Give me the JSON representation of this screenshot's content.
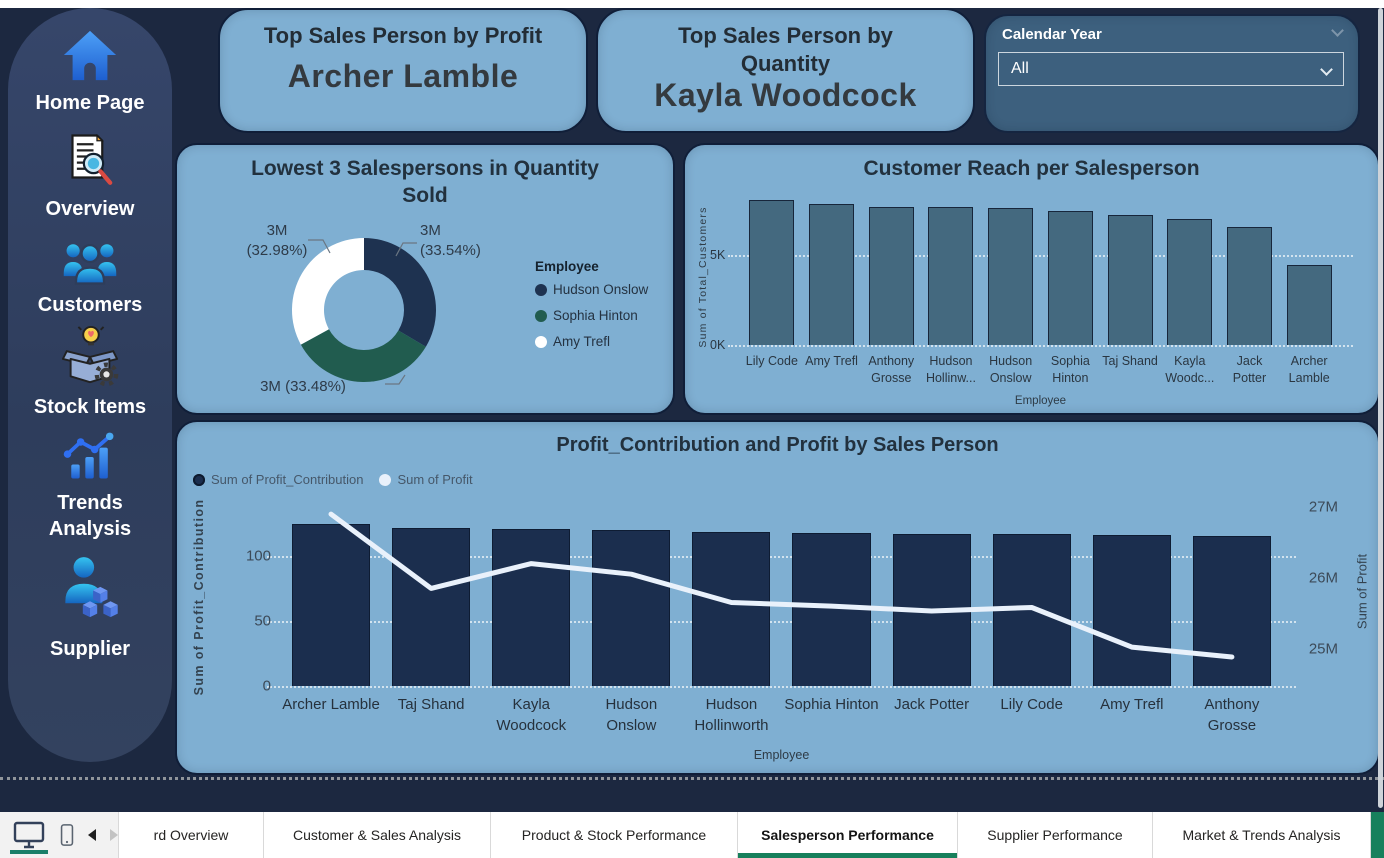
{
  "sidebar": {
    "items": [
      {
        "label": "Home Page"
      },
      {
        "label": "Overview"
      },
      {
        "label": "Customers"
      },
      {
        "label": "Stock Items"
      },
      {
        "label": "Trends Analysis"
      },
      {
        "label": "Supplier"
      }
    ]
  },
  "kpi_cards": [
    {
      "title": "Top Sales Person by Profit",
      "value": "Archer Lamble"
    },
    {
      "title": "Top Sales Person by Quantity",
      "value": "Kayla Woodcock"
    }
  ],
  "slicer": {
    "label": "Calendar Year",
    "value": "All"
  },
  "chart_data": [
    {
      "type": "pie",
      "subtype": "donut",
      "title": "Lowest 3 Salespersons in Quantity Sold",
      "legend_title": "Employee",
      "legend_position": "right",
      "slices": [
        {
          "label": "Hudson Onslow",
          "value_label": "3M",
          "pct": 33.54,
          "color": "#1e3250"
        },
        {
          "label": "Sophia Hinton",
          "value_label": "3M",
          "pct": 33.48,
          "color": "#215c4f"
        },
        {
          "label": "Amy Trefl",
          "value_label": "3M",
          "pct": 32.98,
          "color": "#ffffff"
        }
      ],
      "callouts": {
        "top_right": [
          "3M",
          "(33.54%)"
        ],
        "top_left": [
          "3M",
          "(32.98%)"
        ],
        "bottom": "3M (33.48%)"
      }
    },
    {
      "type": "bar",
      "title": "Customer Reach per Salesperson",
      "xlabel": "Employee",
      "ylabel": "Sum of Total_Customers",
      "categories": [
        "Lily Code",
        "Amy Trefl",
        "Anthony Grosse",
        "Hudson Hollinw...",
        "Hudson Onslow",
        "Sophia Hinton",
        "Taj Shand",
        "Kayla Woodc...",
        "Jack Potter",
        "Archer Lamble"
      ],
      "values": [
        8100,
        7850,
        7700,
        7680,
        7650,
        7450,
        7250,
        7000,
        6600,
        4450
      ],
      "yticks": [
        {
          "value": 0,
          "label": "0K"
        },
        {
          "value": 5000,
          "label": "5K"
        }
      ],
      "ylim": [
        0,
        8250
      ],
      "bar_color": "#44697f",
      "bar_border_color": "#17263b",
      "grid": true
    },
    {
      "type": "combo",
      "title": "Profit_Contribution and Profit by Sales Person",
      "xlabel": "Employee",
      "ylabel_left": "Sum of Profit_Contribution",
      "ylabel_right": "Sum of Profit",
      "legend": [
        "Sum of Profit_Contribution",
        "Sum of Profit"
      ],
      "legend_position": "top-left",
      "categories": [
        "Archer Lamble",
        "Taj Shand",
        "Kayla Woodcock",
        "Hudson Onslow",
        "Hudson Hollinworth",
        "Sophia Hinton",
        "Jack Potter",
        "Lily Code",
        "Amy Trefl",
        "Anthony Grosse"
      ],
      "bar_values": [
        125,
        121.5,
        121,
        120,
        119,
        118,
        117.5,
        117,
        116.3,
        115.5
      ],
      "line_values_millions": [
        26.9,
        25.85,
        26.2,
        26.05,
        25.65,
        25.6,
        25.53,
        25.58,
        25.02,
        24.88
      ],
      "yticks_left": [
        {
          "value": 0,
          "label": "0"
        },
        {
          "value": 50,
          "label": "50"
        },
        {
          "value": 100,
          "label": "100"
        }
      ],
      "yticks_right": [
        {
          "value": 25,
          "label": "25M"
        },
        {
          "value": 26,
          "label": "26M"
        },
        {
          "value": 27,
          "label": "27M"
        }
      ],
      "ylim_left": [
        0,
        138
      ],
      "ylim_right": [
        24.47,
        27.0
      ],
      "bar_color": "#1b2e4e",
      "bar_border_color": "#0e1c33",
      "line_color": "#e9f1fb",
      "grid": true
    }
  ],
  "tabs": {
    "items": [
      {
        "label": "rd Overview",
        "active": false
      },
      {
        "label": "Customer & Sales Analysis",
        "active": false
      },
      {
        "label": "Product & Stock Performance",
        "active": false
      },
      {
        "label": "Salesperson Performance",
        "active": true
      },
      {
        "label": "Supplier Performance",
        "active": false
      },
      {
        "label": "Market & Trends Analysis",
        "active": false
      }
    ]
  },
  "colors": {
    "page_background": "#1c2840",
    "sidebar_background": "#31405e",
    "card_background": "#7fafd2",
    "slicer_background": "#3d607e",
    "active_tab_accent": "#17805c",
    "donut_navy": "#1e3250",
    "donut_green": "#215c4f",
    "donut_white": "#ffffff"
  }
}
